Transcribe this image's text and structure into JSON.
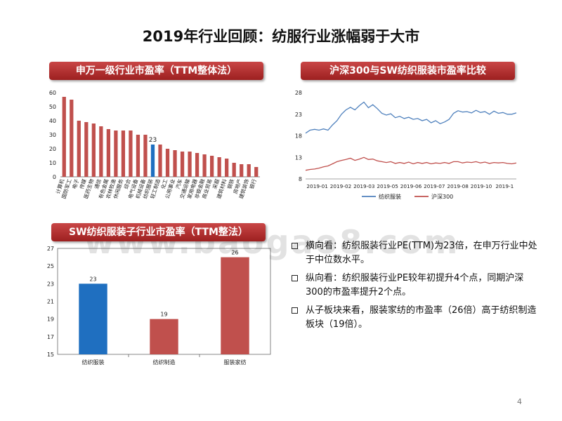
{
  "title": "2019年行业回顾：纺服行业涨幅弱于大市",
  "sections": {
    "industry_pe": "申万一级行业市盈率（TTM整体法）",
    "hs300_compare": "沪深300与SW纺织服装市盈率比较",
    "sub_pe": "SW纺织服装子行业市盈率（TTM整法）"
  },
  "watermark": "www.baogao8.com",
  "bullets": [
    "横向看：纺织服装行业PE(TTM)为23倍，在申万行业中处于中位数水平。",
    "纵向看：纺织服装行业PE较年初提升4个点，同期沪深300的市盈率提升2个点。",
    "从子板块来看，服装家纺的市盈率（26倍）高于纺织制造板块（19倍）。"
  ],
  "page_number": "4",
  "chart_data": [
    {
      "type": "bar",
      "categories": [
        "计算机",
        "国防军工",
        "电子",
        "传媒",
        "医药生物",
        "通信",
        "有色金属",
        "农林牧渔",
        "休闲服务",
        "综合",
        "电气设备",
        "机械设备",
        "纺织服装",
        "轻工制造",
        "化工",
        "公用事业",
        "汽车",
        "交通运输",
        "家用电器",
        "非银金融",
        "商业贸易",
        "采掘",
        "建筑材料",
        "钢铁",
        "房地产",
        "建筑装饰",
        "银行"
      ],
      "values": [
        57,
        55,
        40,
        39,
        38,
        36,
        34,
        33,
        33,
        33,
        30,
        30,
        23,
        23,
        20,
        19,
        18,
        18,
        17,
        16,
        15,
        14,
        13,
        10,
        9,
        9,
        7
      ],
      "highlight_index": 12,
      "highlight_label": "23",
      "ylim": [
        0,
        60
      ],
      "yticks": [
        "0",
        "10",
        "20",
        "30",
        "40",
        "50",
        "60"
      ],
      "colors": {
        "bar": "#c0504d",
        "highlight": "#1f6fc0"
      }
    },
    {
      "type": "line",
      "ylim": [
        8,
        28
      ],
      "yticks": [
        "8",
        "13",
        "18",
        "23",
        "28"
      ],
      "xticks": [
        "2019-01",
        "2019-02",
        "2019-03",
        "2019-05",
        "2019-06",
        "2019-07",
        "2019-08",
        "2019-10",
        "2019-1"
      ],
      "series": [
        {
          "name": "纺织服装",
          "color": "#4f81bd",
          "values": [
            18.6,
            19.3,
            19.5,
            19.3,
            19.6,
            19.3,
            20.5,
            21.5,
            23.0,
            24.0,
            24.6,
            24.0,
            25.0,
            25.8,
            24.5,
            25.2,
            24.3,
            23.2,
            22.8,
            23.1,
            22.2,
            22.5,
            22.0,
            22.3,
            21.8,
            22.0,
            21.5,
            21.8,
            21.0,
            21.5,
            20.8,
            21.2,
            21.8,
            23.2,
            23.8,
            23.5,
            23.6,
            23.3,
            23.9,
            23.4,
            23.6,
            23.0,
            23.7,
            23.2,
            23.4,
            23.0,
            23.0,
            23.3
          ]
        },
        {
          "name": "沪深300",
          "color": "#c0504d",
          "values": [
            10.0,
            10.2,
            10.3,
            10.5,
            10.8,
            11.0,
            11.5,
            12.0,
            12.3,
            12.5,
            12.8,
            12.3,
            12.6,
            13.0,
            12.5,
            12.6,
            12.2,
            12.0,
            11.8,
            12.0,
            11.6,
            11.8,
            11.6,
            11.9,
            11.5,
            11.8,
            11.6,
            11.8,
            11.5,
            11.7,
            11.6,
            11.8,
            11.6,
            12.0,
            12.0,
            11.7,
            11.9,
            11.8,
            12.0,
            11.7,
            11.9,
            11.6,
            11.8,
            11.7,
            11.8,
            11.6,
            11.5,
            11.7
          ]
        }
      ]
    },
    {
      "type": "bar",
      "categories": [
        "纺织服装",
        "纺织制造",
        "服装家纺"
      ],
      "values": [
        23,
        19,
        26
      ],
      "value_labels": [
        "23",
        "19",
        "26"
      ],
      "ylim": [
        15,
        27
      ],
      "yticks": [
        "15",
        "17",
        "19",
        "21",
        "23",
        "25",
        "27"
      ],
      "colors": [
        "#1f6fc0",
        "#c0504d",
        "#c0504d"
      ]
    }
  ]
}
